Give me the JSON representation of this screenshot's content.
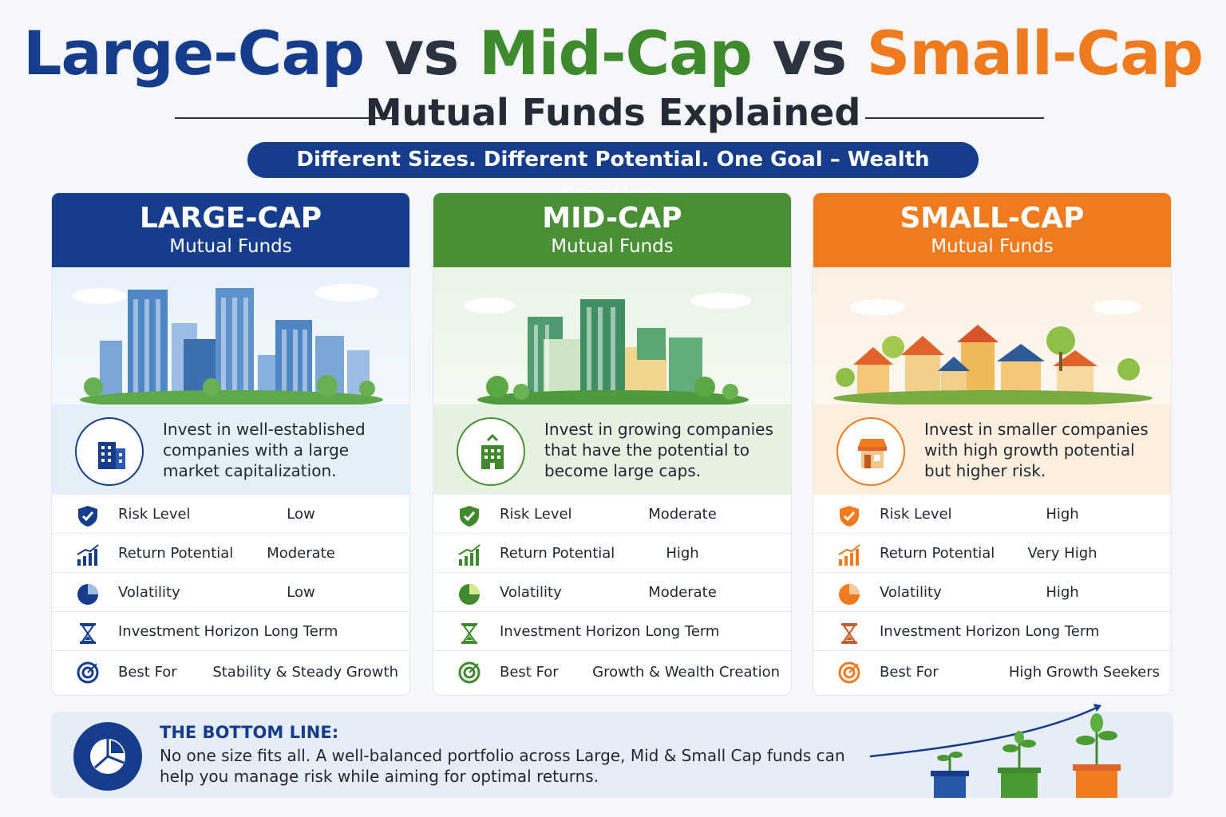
{
  "title": {
    "part1": "Large-Cap",
    "vs1": " vs ",
    "part2": "Mid-Cap",
    "vs2": " vs ",
    "part3": "Small-Cap"
  },
  "subtitle": "Mutual Funds Explained",
  "tagline": "Different Sizes. Different Potential. One Goal – Wealth Creation.",
  "colors": {
    "large": "#163d8c",
    "mid": "#4a8f35",
    "small": "#f07a1e"
  },
  "cards": [
    {
      "title": "LARGE-CAP",
      "subtitle": "Mutual Funds",
      "desc_icon": "office-building-icon",
      "description": "Invest in well-established companies with a large market capitalization.",
      "rows": [
        {
          "label": "Risk Level",
          "value": "Low",
          "icon": "shield-check-icon"
        },
        {
          "label": "Return Potential",
          "value": "Moderate",
          "icon": "growth-chart-icon"
        },
        {
          "label": "Volatility",
          "value": "Low",
          "icon": "pie-chart-icon"
        },
        {
          "label": "Investment Horizon",
          "value": "Long Term",
          "icon": "hourglass-icon"
        },
        {
          "label": "Best For",
          "value": "Stability & Steady Growth",
          "icon": "target-icon"
        }
      ]
    },
    {
      "title": "MID-CAP",
      "subtitle": "Mutual Funds",
      "desc_icon": "growing-building-icon",
      "description": "Invest in growing companies that have the potential to become large caps.",
      "rows": [
        {
          "label": "Risk Level",
          "value": "Moderate",
          "icon": "shield-check-icon"
        },
        {
          "label": "Return Potential",
          "value": "High",
          "icon": "growth-chart-icon"
        },
        {
          "label": "Volatility",
          "value": "Moderate",
          "icon": "pie-chart-icon"
        },
        {
          "label": "Investment Horizon",
          "value": "Long Term",
          "icon": "hourglass-icon"
        },
        {
          "label": "Best For",
          "value": "Growth & Wealth Creation",
          "icon": "target-icon"
        }
      ]
    },
    {
      "title": "SMALL-CAP",
      "subtitle": "Mutual Funds",
      "desc_icon": "shop-icon",
      "description": "Invest in smaller companies with high growth potential but higher risk.",
      "rows": [
        {
          "label": "Risk Level",
          "value": "High",
          "icon": "shield-check-icon"
        },
        {
          "label": "Return Potential",
          "value": "Very High",
          "icon": "growth-chart-icon"
        },
        {
          "label": "Volatility",
          "value": "High",
          "icon": "pie-chart-icon"
        },
        {
          "label": "Investment Horizon",
          "value": "Long Term",
          "icon": "hourglass-icon"
        },
        {
          "label": "Best For",
          "value": "High Growth Seekers",
          "icon": "target-icon"
        }
      ]
    }
  ],
  "bottom_line": {
    "title": "THE BOTTOM LINE:",
    "text": "No one size fits all. A well-balanced portfolio across Large, Mid & Small Cap funds can help you manage risk while aiming for optimal returns.",
    "icon": "portfolio-pie-icon",
    "illustration": "growing-plants-icon"
  }
}
